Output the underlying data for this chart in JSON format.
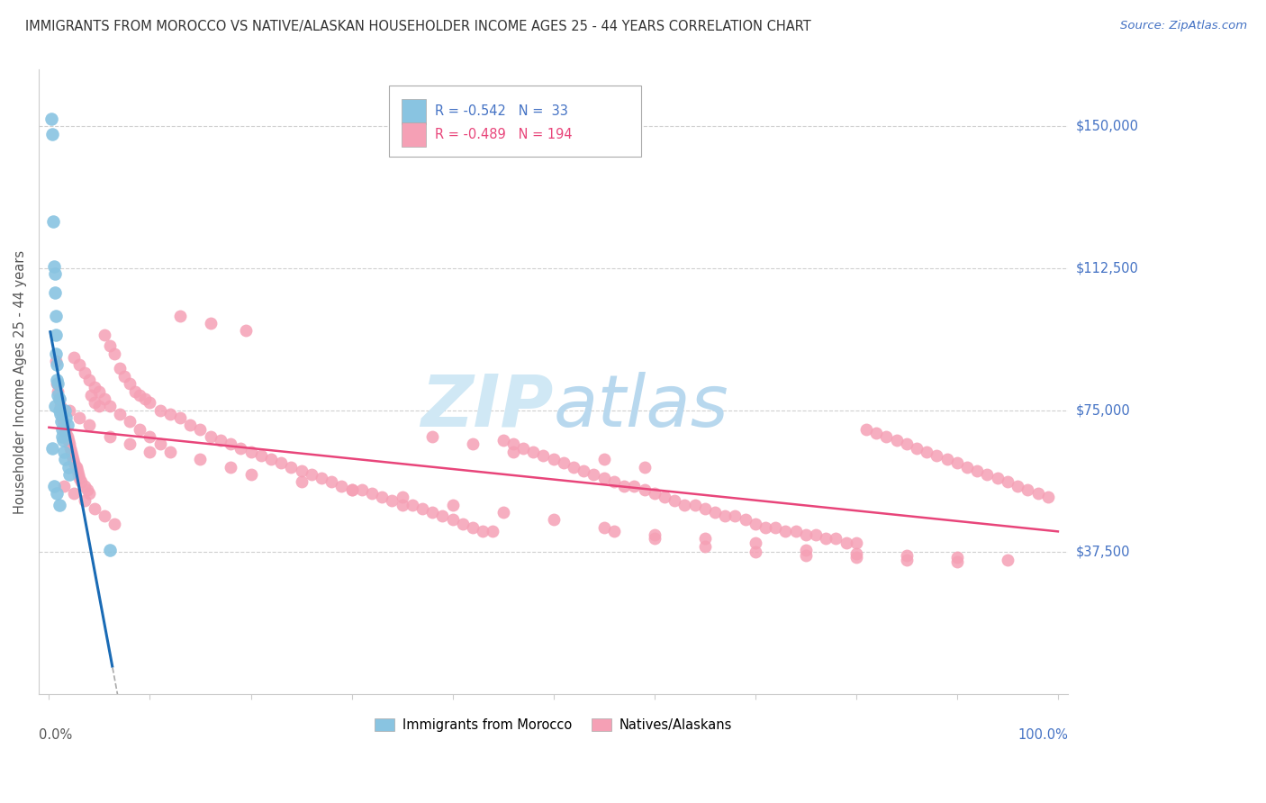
{
  "title": "IMMIGRANTS FROM MOROCCO VS NATIVE/ALASKAN HOUSEHOLDER INCOME AGES 25 - 44 YEARS CORRELATION CHART",
  "source": "Source: ZipAtlas.com",
  "ylabel": "Householder Income Ages 25 - 44 years",
  "legend_label_blue": "Immigrants from Morocco",
  "legend_label_pink": "Natives/Alaskans",
  "blue_color": "#89c4e1",
  "pink_color": "#f5a0b5",
  "blue_line_color": "#1a6bb5",
  "pink_line_color": "#e8457a",
  "right_axis_color": "#4472c4",
  "watermark_color": "#d0e8f5",
  "background_color": "#ffffff",
  "grid_color": "#d0d0d0",
  "ylim": [
    0,
    165000
  ],
  "xlim": [
    -0.01,
    1.01
  ],
  "blue_x": [
    0.002,
    0.003,
    0.004,
    0.005,
    0.006,
    0.006,
    0.007,
    0.007,
    0.007,
    0.008,
    0.008,
    0.009,
    0.009,
    0.01,
    0.01,
    0.011,
    0.012,
    0.013,
    0.013,
    0.014,
    0.015,
    0.016,
    0.016,
    0.017,
    0.018,
    0.019,
    0.02,
    0.003,
    0.005,
    0.006,
    0.008,
    0.06,
    0.01
  ],
  "blue_y": [
    152000,
    148000,
    125000,
    113000,
    111000,
    106000,
    100000,
    95000,
    90000,
    87000,
    83000,
    82000,
    79000,
    78000,
    75000,
    74000,
    72000,
    70000,
    68000,
    67000,
    64000,
    62000,
    75000,
    73000,
    71000,
    60000,
    58000,
    65000,
    55000,
    76000,
    53000,
    38000,
    50000
  ],
  "pink_x": [
    0.007,
    0.008,
    0.009,
    0.01,
    0.011,
    0.012,
    0.013,
    0.014,
    0.015,
    0.016,
    0.017,
    0.018,
    0.019,
    0.02,
    0.021,
    0.022,
    0.023,
    0.024,
    0.025,
    0.026,
    0.027,
    0.028,
    0.029,
    0.03,
    0.032,
    0.035,
    0.038,
    0.04,
    0.042,
    0.045,
    0.05,
    0.055,
    0.06,
    0.065,
    0.07,
    0.075,
    0.08,
    0.085,
    0.09,
    0.095,
    0.1,
    0.11,
    0.12,
    0.13,
    0.14,
    0.15,
    0.16,
    0.17,
    0.18,
    0.19,
    0.2,
    0.21,
    0.22,
    0.23,
    0.24,
    0.25,
    0.26,
    0.27,
    0.28,
    0.29,
    0.3,
    0.31,
    0.32,
    0.33,
    0.34,
    0.35,
    0.36,
    0.37,
    0.38,
    0.39,
    0.4,
    0.41,
    0.42,
    0.43,
    0.44,
    0.45,
    0.46,
    0.47,
    0.48,
    0.49,
    0.5,
    0.51,
    0.52,
    0.53,
    0.54,
    0.55,
    0.56,
    0.57,
    0.58,
    0.59,
    0.6,
    0.61,
    0.62,
    0.63,
    0.64,
    0.65,
    0.66,
    0.67,
    0.68,
    0.69,
    0.7,
    0.71,
    0.72,
    0.73,
    0.74,
    0.75,
    0.76,
    0.77,
    0.78,
    0.79,
    0.8,
    0.81,
    0.82,
    0.83,
    0.84,
    0.85,
    0.86,
    0.87,
    0.88,
    0.89,
    0.9,
    0.91,
    0.92,
    0.93,
    0.94,
    0.95,
    0.96,
    0.97,
    0.98,
    0.99,
    0.025,
    0.03,
    0.035,
    0.04,
    0.045,
    0.05,
    0.055,
    0.06,
    0.07,
    0.08,
    0.09,
    0.1,
    0.11,
    0.12,
    0.15,
    0.18,
    0.2,
    0.25,
    0.3,
    0.35,
    0.4,
    0.45,
    0.5,
    0.55,
    0.6,
    0.65,
    0.7,
    0.75,
    0.8,
    0.85,
    0.9,
    0.95,
    0.02,
    0.03,
    0.04,
    0.06,
    0.08,
    0.1,
    0.015,
    0.025,
    0.035,
    0.045,
    0.055,
    0.065,
    0.56,
    0.6,
    0.65,
    0.7,
    0.75,
    0.8,
    0.85,
    0.9,
    0.13,
    0.16,
    0.195,
    0.38,
    0.42,
    0.46,
    0.55,
    0.59
  ],
  "pink_y": [
    88000,
    82000,
    80000,
    78000,
    76000,
    75000,
    73000,
    72000,
    71000,
    70000,
    69000,
    68000,
    67000,
    66000,
    65000,
    64000,
    63000,
    62000,
    61000,
    60000,
    60000,
    59000,
    58000,
    57000,
    56000,
    55000,
    54000,
    53000,
    79000,
    77000,
    76000,
    95000,
    92000,
    90000,
    86000,
    84000,
    82000,
    80000,
    79000,
    78000,
    77000,
    75000,
    74000,
    73000,
    71000,
    70000,
    68000,
    67000,
    66000,
    65000,
    64000,
    63000,
    62000,
    61000,
    60000,
    59000,
    58000,
    57000,
    56000,
    55000,
    54000,
    54000,
    53000,
    52000,
    51000,
    50000,
    50000,
    49000,
    48000,
    47000,
    46000,
    45000,
    44000,
    43000,
    43000,
    67000,
    66000,
    65000,
    64000,
    63000,
    62000,
    61000,
    60000,
    59000,
    58000,
    57000,
    56000,
    55000,
    55000,
    54000,
    53000,
    52000,
    51000,
    50000,
    50000,
    49000,
    48000,
    47000,
    47000,
    46000,
    45000,
    44000,
    44000,
    43000,
    43000,
    42000,
    42000,
    41000,
    41000,
    40000,
    40000,
    70000,
    69000,
    68000,
    67000,
    66000,
    65000,
    64000,
    63000,
    62000,
    61000,
    60000,
    59000,
    58000,
    57000,
    56000,
    55000,
    54000,
    53000,
    52000,
    89000,
    87000,
    85000,
    83000,
    81000,
    80000,
    78000,
    76000,
    74000,
    72000,
    70000,
    68000,
    66000,
    64000,
    62000,
    60000,
    58000,
    56000,
    54000,
    52000,
    50000,
    48000,
    46000,
    44000,
    42000,
    41000,
    40000,
    38000,
    37000,
    36500,
    36000,
    35500,
    75000,
    73000,
    71000,
    68000,
    66000,
    64000,
    55000,
    53000,
    51000,
    49000,
    47000,
    45000,
    43000,
    41000,
    39000,
    37500,
    36500,
    36000,
    35500,
    35000,
    100000,
    98000,
    96000,
    68000,
    66000,
    64000,
    62000,
    60000
  ]
}
